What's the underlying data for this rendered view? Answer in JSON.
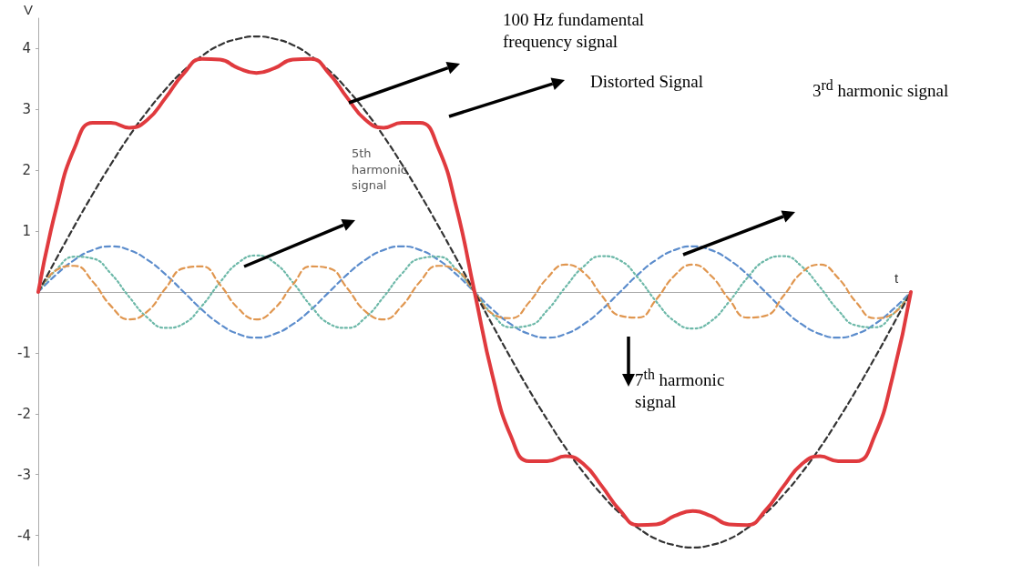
{
  "chart_data": {
    "type": "line",
    "xlabel": "t",
    "ylabel": "V",
    "categories": [
      null,
      null,
      null,
      null,
      null,
      null,
      null,
      null,
      null,
      null,
      null,
      null,
      null,
      null,
      null,
      null,
      null,
      null,
      null,
      null,
      null,
      null,
      null,
      null,
      null,
      null,
      null,
      null,
      null,
      null,
      null,
      null,
      null,
      null,
      null,
      null,
      null,
      null,
      null,
      null,
      null,
      null,
      null,
      null,
      null,
      null,
      null,
      null,
      null
    ],
    "ylim": [
      -4.5,
      4.5
    ],
    "yticks": [
      -4,
      -3,
      -2,
      -1,
      1,
      2,
      3,
      4
    ],
    "grid": false,
    "marker": "none",
    "series": [
      {
        "color": "#5b8ccc",
        "line_style": "dashed",
        "values": [
          0,
          0.29,
          0.53,
          0.69,
          0.75,
          0.69,
          0.53,
          0.29,
          0,
          -0.29,
          -0.53,
          -0.69,
          -0.75,
          -0.69,
          -0.53,
          -0.29,
          0,
          0.29,
          0.53,
          0.69,
          0.75,
          0.69,
          0.53,
          0.29,
          0,
          -0.29,
          -0.53,
          -0.69,
          -0.75,
          -0.69,
          -0.53,
          -0.29,
          0,
          0.29,
          0.53,
          0.69,
          0.75,
          0.69,
          0.53,
          0.29,
          0,
          -0.29,
          -0.53,
          -0.69,
          -0.75,
          -0.69,
          -0.53,
          -0.29,
          0
        ]
      },
      {
        "color": "#6cb8a8",
        "line_style": "dotted",
        "values": [
          0,
          0.37,
          0.58,
          0.55,
          0.3,
          -0.08,
          -0.42,
          -0.59,
          -0.52,
          -0.23,
          0.16,
          0.48,
          0.6,
          0.48,
          0.16,
          -0.23,
          -0.52,
          -0.59,
          -0.42,
          -0.08,
          0.3,
          0.55,
          0.58,
          0.37,
          0,
          -0.37,
          -0.58,
          -0.55,
          -0.3,
          0.08,
          0.42,
          0.59,
          0.52,
          0.23,
          -0.16,
          -0.48,
          -0.6,
          -0.48,
          -0.16,
          0.23,
          0.52,
          0.59,
          0.42,
          0.08,
          -0.3,
          -0.55,
          -0.58,
          -0.37,
          0
        ]
      },
      {
        "color": "#e0964f",
        "line_style": "dashed",
        "values": [
          0,
          0.36,
          0.43,
          0.17,
          -0.23,
          -0.45,
          -0.32,
          0.06,
          0.39,
          0.42,
          0.12,
          -0.27,
          -0.45,
          -0.27,
          0.12,
          0.42,
          0.39,
          0.06,
          -0.32,
          -0.45,
          -0.23,
          0.17,
          0.43,
          0.36,
          0,
          -0.36,
          -0.43,
          -0.17,
          0.23,
          0.45,
          0.32,
          -0.06,
          -0.39,
          -0.42,
          -0.12,
          0.27,
          0.45,
          0.27,
          -0.12,
          -0.42,
          -0.39,
          -0.06,
          0.32,
          0.45,
          0.23,
          -0.17,
          -0.43,
          -0.36,
          0
        ]
      },
      {
        "color": "#333333",
        "line_style": "dashed",
        "values": [
          0,
          0.55,
          1.09,
          1.61,
          2.1,
          2.56,
          2.97,
          3.33,
          3.64,
          3.88,
          4.06,
          4.16,
          4.2,
          4.16,
          4.06,
          3.88,
          3.64,
          3.33,
          2.97,
          2.56,
          2.1,
          1.61,
          1.09,
          0.55,
          0,
          -0.55,
          -1.09,
          -1.61,
          -2.1,
          -2.56,
          -2.97,
          -3.33,
          -3.64,
          -3.88,
          -4.06,
          -4.16,
          -4.2,
          -4.16,
          -4.06,
          -3.88,
          -3.64,
          -3.33,
          -2.97,
          -2.56,
          -2.1,
          -1.61,
          -1.09,
          -0.55,
          0
        ]
      },
      {
        "color": "#e03a3e",
        "line_style": "solid",
        "values": [
          0,
          1.39,
          2.37,
          2.78,
          2.78,
          2.7,
          2.83,
          3.19,
          3.59,
          3.83,
          3.82,
          3.68,
          3.6,
          3.68,
          3.82,
          3.83,
          3.59,
          3.19,
          2.83,
          2.7,
          2.78,
          2.78,
          2.37,
          1.39,
          0,
          -1.39,
          -2.37,
          -2.78,
          -2.78,
          -2.7,
          -2.83,
          -3.19,
          -3.59,
          -3.83,
          -3.82,
          -3.68,
          -3.6,
          -3.68,
          -3.82,
          -3.83,
          -3.59,
          -3.19,
          -2.83,
          -2.7,
          -2.78,
          -2.78,
          -2.37,
          -1.39,
          0
        ]
      }
    ],
    "annotations": [
      "100 Hz fundamental frequency signal",
      "Distorted Signal",
      "5th harmonic signal",
      "3$^{rd}$ harmonic signal",
      "7$^{th}$ harmonic signal"
    ]
  }
}
